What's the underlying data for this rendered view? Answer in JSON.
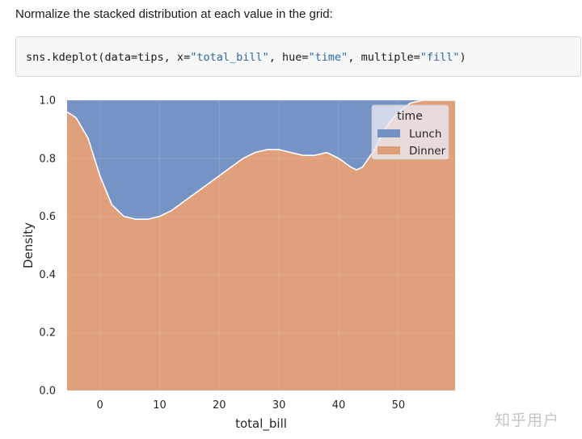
{
  "intro_text": "Normalize the stacked distribution at each value in the grid:",
  "code": {
    "p1": "sns.kdeplot(data=tips, x=",
    "s1": "\"total_bill\"",
    "p2": ", hue=",
    "s2": "\"time\"",
    "p3": ", multiple=",
    "s3": "\"fill\"",
    "p4": ")"
  },
  "watermark": "知乎用户",
  "chart_data": {
    "type": "area",
    "stacking": "fill",
    "xlabel": "total_bill",
    "ylabel": "Density",
    "xlim": [
      -5.5,
      59.5
    ],
    "ylim": [
      0,
      1.0
    ],
    "xticks": [
      0,
      10,
      20,
      30,
      40,
      50
    ],
    "yticks": [
      0.0,
      0.2,
      0.4,
      0.6,
      0.8,
      1.0
    ],
    "ytick_labels": [
      "0.0",
      "0.2",
      "0.4",
      "0.6",
      "0.8",
      "1.0"
    ],
    "grid": true,
    "legend": {
      "title": "time",
      "placement": "top-right"
    },
    "x": [
      -5.5,
      -4,
      -2,
      0,
      2,
      4,
      6,
      8,
      10,
      12,
      14,
      16,
      18,
      20,
      22,
      24,
      26,
      28,
      30,
      32,
      34,
      36,
      38,
      40,
      42,
      43,
      44,
      46,
      48,
      50,
      52,
      54,
      56,
      59.5
    ],
    "series": [
      {
        "name": "Lunch",
        "color": "#7391c4",
        "values": [
          0.04,
          0.06,
          0.13,
          0.26,
          0.36,
          0.4,
          0.41,
          0.41,
          0.4,
          0.38,
          0.35,
          0.32,
          0.29,
          0.26,
          0.23,
          0.2,
          0.18,
          0.17,
          0.17,
          0.18,
          0.19,
          0.19,
          0.18,
          0.2,
          0.23,
          0.24,
          0.23,
          0.17,
          0.09,
          0.04,
          0.01,
          0.0,
          0.0,
          0.0
        ]
      },
      {
        "name": "Dinner",
        "color": "#de9e78",
        "values": [
          0.96,
          0.94,
          0.87,
          0.74,
          0.64,
          0.6,
          0.59,
          0.59,
          0.6,
          0.62,
          0.65,
          0.68,
          0.71,
          0.74,
          0.77,
          0.8,
          0.82,
          0.83,
          0.83,
          0.82,
          0.81,
          0.81,
          0.82,
          0.8,
          0.77,
          0.76,
          0.77,
          0.83,
          0.91,
          0.96,
          0.99,
          1.0,
          1.0,
          1.0
        ]
      }
    ]
  }
}
